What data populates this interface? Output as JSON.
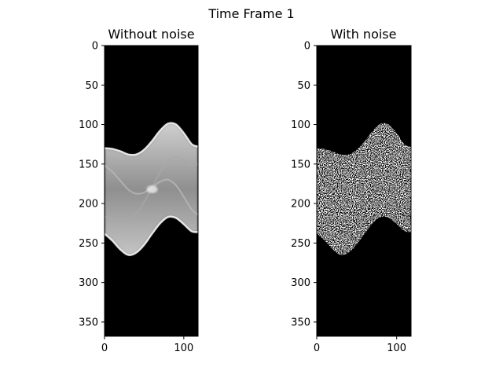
{
  "figure": {
    "suptitle": "Time Frame 1"
  },
  "chart_data": [
    {
      "type": "heatmap",
      "title": "Without noise",
      "xlabel": "",
      "ylabel": "",
      "xlim": [
        0,
        118
      ],
      "ylim": [
        0,
        368
      ],
      "y_inverted": true,
      "xticks": [
        0,
        100
      ],
      "yticks": [
        0,
        50,
        100,
        150,
        200,
        250,
        300,
        350
      ],
      "colormap": "gray",
      "background_value": 0,
      "band": {
        "x": [
          0,
          10,
          20,
          30,
          40,
          50,
          60,
          70,
          80,
          90,
          100,
          110,
          118
        ],
        "top": [
          130,
          131,
          134,
          138,
          138,
          132,
          121,
          108,
          99,
          100,
          111,
          125,
          128
        ],
        "bottom": [
          238,
          247,
          258,
          265,
          262,
          252,
          238,
          225,
          217,
          218,
          226,
          235,
          236
        ]
      }
    },
    {
      "type": "heatmap",
      "title": "With noise",
      "xlabel": "",
      "ylabel": "",
      "xlim": [
        0,
        118
      ],
      "ylim": [
        0,
        368
      ],
      "y_inverted": true,
      "xticks": [
        0,
        100
      ],
      "yticks": [
        0,
        50,
        100,
        150,
        200,
        250,
        300,
        350
      ],
      "colormap": "binary (black/white)",
      "background_value": 0,
      "band": {
        "x": [
          0,
          10,
          20,
          30,
          40,
          50,
          60,
          70,
          80,
          90,
          100,
          110,
          118
        ],
        "top": [
          130,
          131,
          134,
          138,
          138,
          132,
          121,
          108,
          99,
          100,
          111,
          125,
          128
        ],
        "bottom": [
          238,
          247,
          258,
          265,
          262,
          252,
          238,
          225,
          217,
          218,
          226,
          235,
          236
        ]
      }
    }
  ]
}
